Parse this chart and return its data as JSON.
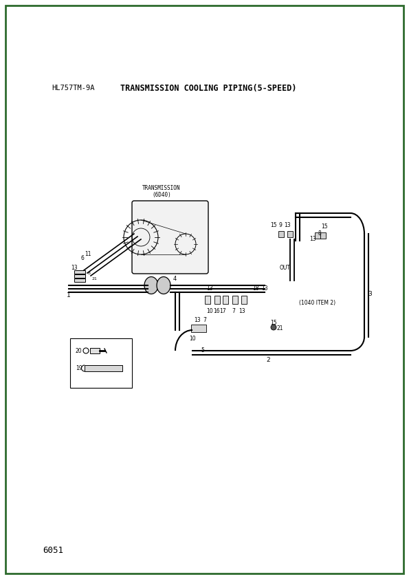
{
  "title_left": "HL757TM-9A",
  "title_right": "TRANSMISSION COOLING PIPING(5-SPEED)",
  "page_number": "6051",
  "background_color": "#ffffff",
  "border_color": "#2d6a2d",
  "line_color": "#000000",
  "transmission_label": "TRANSMISSION\n(6D40)",
  "item1040_label": "(1040 ITEM 2)",
  "out_label": "OUT",
  "lw_pipe": 1.5
}
